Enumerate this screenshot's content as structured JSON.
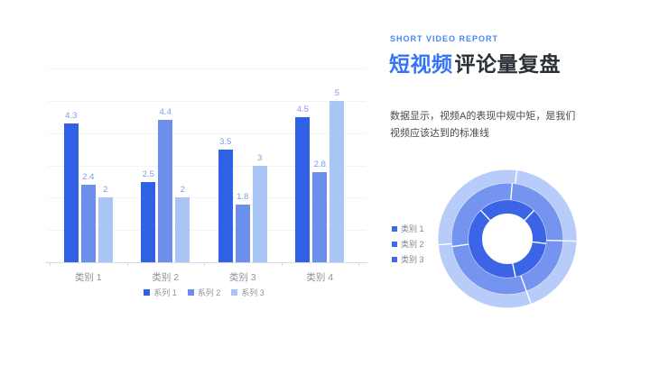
{
  "slide": {
    "eyebrow": "SHORT VIDEO REPORT",
    "title_highlight": "短视频",
    "title_rest": "评论量复盘",
    "body_line1": "数据显示，视频A的表现中规中矩，是我们",
    "body_line2": "视频应该达到的标准线"
  },
  "colors": {
    "accent_blue": "#3575f5",
    "title_dark": "#2b2f36",
    "eyebrow_blue": "#4a84f1",
    "body_text": "#464b52",
    "axis_gray": "#8d939d",
    "gridline": "#e8eaee",
    "axis_line": "#d7dce2",
    "bar_label": "#7e9df0",
    "donut_legend_swatch": "#3f6be2"
  },
  "chart_data": [
    {
      "type": "bar",
      "title": "",
      "categories": [
        "类别 1",
        "类别 2",
        "类别 3",
        "类别 4"
      ],
      "series": [
        {
          "name": "系列 1",
          "color": "#3161e4",
          "values": [
            4.3,
            2.5,
            3.5,
            4.5
          ]
        },
        {
          "name": "系列 2",
          "color": "#6d8fec",
          "values": [
            2.4,
            4.4,
            1.8,
            2.8
          ]
        },
        {
          "name": "系列 3",
          "color": "#a9c5f6",
          "values": [
            2,
            2,
            3,
            5
          ]
        }
      ],
      "ylim": [
        0,
        6
      ],
      "grid": "horizontal dotted, no y tick labels",
      "data_labels": true,
      "legend_position": "bottom"
    },
    {
      "type": "doughnut",
      "legend": [
        "类别 1",
        "类别 2",
        "类别 3"
      ],
      "legend_position": "left",
      "rings": [
        {
          "name": "inner ring",
          "color": "#3b65e6",
          "divider_angles_deg": [
            43,
            97,
            168,
            317
          ]
        },
        {
          "name": "middle ring",
          "color": "#7494ef",
          "divider_angles_deg": [
            5,
            92,
            160,
            262
          ]
        },
        {
          "name": "outer ring",
          "color": "#b7ccf8",
          "divider_angles_deg": [
            8,
            92,
            160,
            265
          ]
        }
      ]
    }
  ]
}
